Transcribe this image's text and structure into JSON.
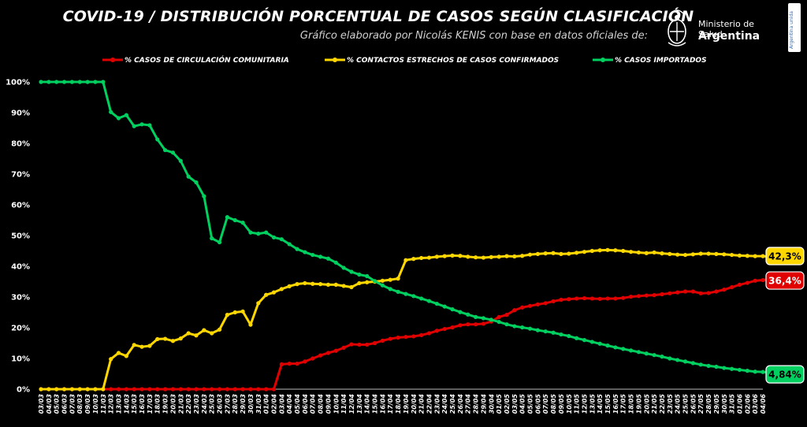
{
  "header": {
    "title": "COVID-19  /  DISTRIBUCIÓN PORCENTUAL DE CASOS SEGÚN CLASIFICACIÓN",
    "subtitle": "Gráfico elaborado por Nicolás KENIS con base en datos oficiales de:",
    "logo_ministry": "Ministerio de Salud",
    "logo_country": "Argentina",
    "side_badge": "Argentina unida"
  },
  "chart_data": {
    "type": "line",
    "title": "COVID-19  /  DISTRIBUCIÓN PORCENTUAL DE CASOS SEGÚN CLASIFICACIÓN",
    "subtitle": "Gráfico elaborado por Nicolás KENIS con base en datos oficiales de:",
    "xlabel": "",
    "ylabel": "",
    "ylim": [
      0,
      100
    ],
    "yticks": [
      "0%",
      "10%",
      "20%",
      "30%",
      "40%",
      "50%",
      "60%",
      "70%",
      "80%",
      "90%",
      "100%"
    ],
    "grid": false,
    "legend_position": "top",
    "x_start": "2020-03-03",
    "x_end": "2020-06-04",
    "x_tick_labels": [
      "03/03",
      "04/03",
      "05/03",
      "06/03",
      "07/03",
      "08/03",
      "09/03",
      "10/03",
      "11/03",
      "12/03",
      "13/03",
      "14/03",
      "15/03",
      "16/03",
      "17/03",
      "18/03",
      "19/03",
      "20/03",
      "21/03",
      "22/03",
      "23/03",
      "24/03",
      "25/03",
      "26/03",
      "27/03",
      "28/03",
      "29/03",
      "30/03",
      "31/03",
      "01/04",
      "02/04",
      "03/04",
      "04/04",
      "05/04",
      "06/04",
      "07/04",
      "08/04",
      "09/04",
      "10/04",
      "11/04",
      "12/04",
      "13/04",
      "14/04",
      "15/04",
      "16/04",
      "17/04",
      "18/04",
      "19/04",
      "20/04",
      "21/04",
      "22/04",
      "23/04",
      "24/04",
      "25/04",
      "26/04",
      "27/04",
      "28/04",
      "29/04",
      "30/04",
      "01/05",
      "02/05",
      "03/05",
      "04/05",
      "05/05",
      "06/05",
      "07/05",
      "08/05",
      "09/05",
      "10/05",
      "11/05",
      "12/05",
      "13/05",
      "14/05",
      "15/05",
      "16/05",
      "17/05",
      "18/05",
      "19/05",
      "20/05",
      "21/05",
      "22/05",
      "23/05",
      "24/05",
      "25/05",
      "26/05",
      "27/05",
      "28/05",
      "29/05",
      "30/05",
      "31/05",
      "01/06",
      "02/06",
      "03/06",
      "04/06"
    ],
    "series": [
      {
        "name": "% CASOS DE CIRCULACIÓN COMUNITARIA",
        "color": "#e00000",
        "end_label": "36,4%",
        "values": [
          0,
          0,
          0,
          0,
          0,
          0,
          0,
          0,
          0,
          0,
          0,
          0,
          0,
          0,
          0,
          0,
          0,
          0,
          0,
          0,
          0,
          0,
          0,
          0,
          0,
          0,
          0,
          0,
          0,
          0,
          0,
          8.1,
          8.3,
          8.3,
          9,
          10,
          11,
          11.8,
          12.5,
          13.5,
          14.6,
          14.5,
          14.5,
          15,
          15.8,
          16.4,
          16.8,
          17,
          17.2,
          17.6,
          18.2,
          19,
          19.6,
          20.1,
          20.8,
          21.1,
          21.1,
          21.3,
          22,
          23.5,
          24.2,
          25.7,
          26.6,
          27.1,
          27.6,
          28,
          28.6,
          29.1,
          29.3,
          29.5,
          29.6,
          29.5,
          29.4,
          29.5,
          29.5,
          29.7,
          30.1,
          30.3,
          30.5,
          30.6,
          30.9,
          31.2,
          31.5,
          31.8,
          31.8,
          31.2,
          31.3,
          31.8,
          32.4,
          33.2,
          34,
          34.6,
          35.3,
          35.5,
          35.7,
          36,
          36.3,
          36.4
        ]
      },
      {
        "name": "% CONTACTOS ESTRECHOS DE CASOS CONFIRMADOS",
        "color": "#ffd700",
        "end_label": "42,3%",
        "values": [
          0,
          0,
          0,
          0,
          0,
          0,
          0,
          0,
          0,
          9.8,
          11.8,
          10.8,
          14.4,
          13.8,
          14.1,
          16.3,
          16.4,
          15.7,
          16.5,
          18.2,
          17.5,
          19.2,
          18.2,
          19.4,
          24.2,
          25,
          25.3,
          21,
          28,
          30.7,
          31.5,
          32.6,
          33.5,
          34.2,
          34.5,
          34.3,
          34.2,
          34,
          34,
          33.6,
          33.2,
          34.5,
          34.8,
          35,
          35.3,
          35.6,
          36,
          42,
          42.4,
          42.7,
          42.8,
          43.1,
          43.3,
          43.5,
          43.4,
          43.1,
          42.9,
          42.8,
          43,
          43.1,
          43.3,
          43.2,
          43.4,
          43.8,
          44,
          44.2,
          44.3,
          44,
          44.1,
          44.4,
          44.7,
          45,
          45.2,
          45.3,
          45.2,
          45,
          44.7,
          44.5,
          44.3,
          44.5,
          44.2,
          44,
          43.8,
          43.7,
          43.9,
          44.1,
          44.1,
          44,
          43.9,
          43.7,
          43.5,
          43.4,
          43.3,
          43.3,
          43.1,
          42.8,
          42.6,
          42.3
        ]
      },
      {
        "name": "% CASOS IMPORTADOS",
        "color": "#00d060",
        "end_label": "4,84%",
        "values": [
          100,
          100,
          100,
          100,
          100,
          100,
          100,
          100,
          100,
          90.2,
          88.2,
          89.2,
          85.6,
          86.2,
          85.9,
          81.3,
          77.8,
          77,
          74.3,
          69.2,
          67.3,
          62.8,
          49.1,
          47.8,
          56,
          55,
          54.2,
          51,
          50.6,
          51,
          49.4,
          48.8,
          47.2,
          45.6,
          44.6,
          43.7,
          43.1,
          42.5,
          41.2,
          39.5,
          38.2,
          37.3,
          36.8,
          35.2,
          33.8,
          32.6,
          31.7,
          31,
          30.3,
          29.5,
          28.7,
          27.8,
          26.9,
          26,
          25.1,
          24.3,
          23.5,
          23.1,
          22.6,
          21.9,
          21.1,
          20.5,
          20.1,
          19.7,
          19.2,
          18.8,
          18.4,
          17.8,
          17.3,
          16.6,
          16,
          15.4,
          14.8,
          14.2,
          13.6,
          13.1,
          12.6,
          12.1,
          11.6,
          11.1,
          10.6,
          10,
          9.5,
          9,
          8.5,
          8,
          7.6,
          7.3,
          6.9,
          6.6,
          6.3,
          6,
          5.7,
          5.6,
          5.4,
          5.2,
          5,
          4.84
        ]
      }
    ]
  }
}
